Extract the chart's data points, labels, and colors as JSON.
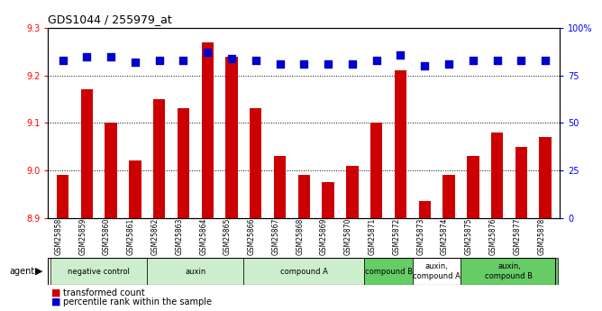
{
  "title": "GDS1044 / 255979_at",
  "samples": [
    "GSM25858",
    "GSM25859",
    "GSM25860",
    "GSM25861",
    "GSM25862",
    "GSM25863",
    "GSM25864",
    "GSM25865",
    "GSM25866",
    "GSM25867",
    "GSM25868",
    "GSM25869",
    "GSM25870",
    "GSM25871",
    "GSM25872",
    "GSM25873",
    "GSM25874",
    "GSM25875",
    "GSM25876",
    "GSM25877",
    "GSM25878"
  ],
  "bar_values": [
    8.99,
    9.17,
    9.1,
    9.02,
    9.15,
    9.13,
    9.27,
    9.24,
    9.13,
    9.03,
    8.99,
    8.975,
    9.01,
    9.1,
    9.21,
    8.935,
    8.99,
    9.03,
    9.08,
    9.05,
    9.07
  ],
  "percentile_values": [
    83,
    85,
    85,
    82,
    83,
    83,
    87,
    84,
    83,
    81,
    81,
    81,
    81,
    83,
    86,
    80,
    81,
    83,
    83,
    83,
    83
  ],
  "ylim_left": [
    8.9,
    9.3
  ],
  "ylim_right": [
    0,
    100
  ],
  "yticks_left": [
    8.9,
    9.0,
    9.1,
    9.2,
    9.3
  ],
  "yticks_right": [
    0,
    25,
    50,
    75,
    100
  ],
  "ytick_labels_right": [
    "0",
    "25",
    "50",
    "75",
    "100%"
  ],
  "groups": [
    {
      "label": "negative control",
      "start": 0,
      "end": 4,
      "color": "#cceecc"
    },
    {
      "label": "auxin",
      "start": 4,
      "end": 8,
      "color": "#cceecc"
    },
    {
      "label": "compound A",
      "start": 8,
      "end": 13,
      "color": "#cceecc"
    },
    {
      "label": "compound B",
      "start": 13,
      "end": 15,
      "color": "#66cc66"
    },
    {
      "label": "auxin,\ncompound A",
      "start": 15,
      "end": 17,
      "color": "#ffffff"
    },
    {
      "label": "auxin,\ncompound B",
      "start": 17,
      "end": 21,
      "color": "#66cc66"
    }
  ],
  "bar_color": "#cc0000",
  "dot_color": "#0000cc",
  "bar_width": 0.5,
  "legend_items": [
    {
      "label": "transformed count",
      "color": "#cc0000"
    },
    {
      "label": "percentile rank within the sample",
      "color": "#0000cc"
    }
  ],
  "percentile_dot_size": 28
}
